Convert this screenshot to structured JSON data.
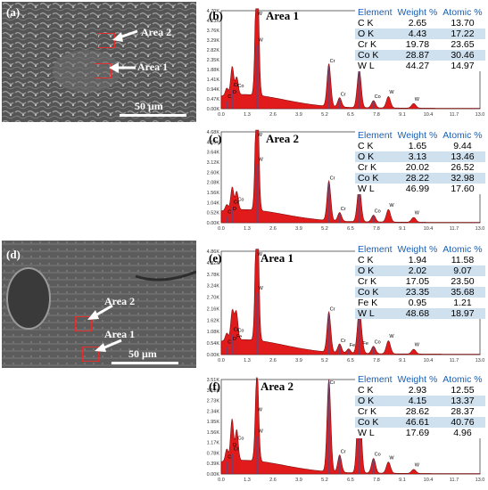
{
  "figure": {
    "panels": [
      {
        "id": "a",
        "letter": "(a)",
        "area_labels": [
          "Area 2",
          "Area 1"
        ],
        "scale_bar": "50 μm"
      },
      {
        "id": "b",
        "letter": "(b)",
        "title": "Area 1",
        "y_ticks": [
          "0.00K",
          "0.47K",
          "0.94K",
          "1.41K",
          "1.88K",
          "2.35K",
          "2.82K",
          "3.29K",
          "3.76K",
          "4.23K",
          "4.70K"
        ],
        "x_ticks": [
          "0.0",
          "1.3",
          "2.6",
          "3.9",
          "5.2",
          "6.5",
          "7.8",
          "9.1",
          "10.4",
          "11.7",
          "13.0"
        ],
        "peak_labels": [
          {
            "text": "C",
            "x": 0.28
          },
          {
            "text": "O",
            "x": 0.52
          },
          {
            "text": "Cr",
            "x": 0.57
          },
          {
            "text": "Co",
            "x": 0.78
          },
          {
            "text": "W",
            "x": 1.78
          },
          {
            "text": "W",
            "x": 1.77
          },
          {
            "text": "Cr",
            "x": 5.41
          },
          {
            "text": "Cr",
            "x": 5.95
          },
          {
            "text": "Co",
            "x": 6.93
          },
          {
            "text": "Co",
            "x": 7.65
          },
          {
            "text": "W",
            "x": 8.4
          },
          {
            "text": "W",
            "x": 9.67
          }
        ],
        "table": {
          "headers": [
            "Element",
            "Weight %",
            "Atomic %"
          ],
          "rows": [
            {
              "element": "C  K",
              "weight": "2.65",
              "atomic": "13.70"
            },
            {
              "element": "O  K",
              "weight": "4.43",
              "atomic": "17.22"
            },
            {
              "element": "Cr K",
              "weight": "19.78",
              "atomic": "23.65"
            },
            {
              "element": "Co K",
              "weight": "28.87",
              "atomic": "30.46"
            },
            {
              "element": "W  L",
              "weight": "44.27",
              "atomic": "14.97"
            }
          ]
        }
      },
      {
        "id": "c",
        "letter": "(c)",
        "title": "Area 2",
        "y_ticks": [
          "0.00K",
          "0.52K",
          "1.04K",
          "1.56K",
          "2.08K",
          "2.60K",
          "3.12K",
          "3.64K",
          "4.16K",
          "4.68K"
        ],
        "x_ticks": [
          "0.0",
          "1.3",
          "2.6",
          "3.9",
          "5.2",
          "6.5",
          "7.8",
          "9.1",
          "10.4",
          "11.7",
          "13.0"
        ],
        "peak_labels": [
          {
            "text": "C",
            "x": 0.28
          },
          {
            "text": "O",
            "x": 0.52
          },
          {
            "text": "Cr",
            "x": 0.57
          },
          {
            "text": "Co",
            "x": 0.78
          },
          {
            "text": "W",
            "x": 1.78
          },
          {
            "text": "W",
            "x": 1.77
          },
          {
            "text": "Cr",
            "x": 5.41
          },
          {
            "text": "Cr",
            "x": 5.95
          },
          {
            "text": "Co",
            "x": 6.93
          },
          {
            "text": "Co",
            "x": 7.65
          },
          {
            "text": "W",
            "x": 8.4
          },
          {
            "text": "W",
            "x": 9.67
          }
        ],
        "table": {
          "headers": [
            "Element",
            "Weight %",
            "Atomic %"
          ],
          "rows": [
            {
              "element": "C  K",
              "weight": "1.65",
              "atomic": "9.44"
            },
            {
              "element": "O  K",
              "weight": "3.13",
              "atomic": "13.46"
            },
            {
              "element": "Cr K",
              "weight": "20.02",
              "atomic": "26.52"
            },
            {
              "element": "Co K",
              "weight": "28.22",
              "atomic": "32.98"
            },
            {
              "element": "W  L",
              "weight": "46.99",
              "atomic": "17.60"
            }
          ]
        }
      },
      {
        "id": "d",
        "letter": "(d)",
        "area_labels": [
          "Area 2",
          "Area 1"
        ],
        "scale_bar": "50 μm"
      },
      {
        "id": "e",
        "letter": "(e)",
        "title": "Area 1",
        "y_ticks": [
          "0.00K",
          "0.54K",
          "1.08K",
          "1.62K",
          "2.16K",
          "2.70K",
          "3.24K",
          "3.78K",
          "4.32K",
          "4.86K"
        ],
        "x_ticks": [
          "0.0",
          "1.3",
          "2.6",
          "3.9",
          "5.2",
          "6.5",
          "7.8",
          "9.1",
          "10.4",
          "11.7",
          "13.0"
        ],
        "peak_labels": [
          {
            "text": "C",
            "x": 0.28
          },
          {
            "text": "O",
            "x": 0.52
          },
          {
            "text": "Cr",
            "x": 0.57
          },
          {
            "text": "Fe",
            "x": 0.71
          },
          {
            "text": "Co",
            "x": 0.78
          },
          {
            "text": "W",
            "x": 1.78
          },
          {
            "text": "W",
            "x": 1.77
          },
          {
            "text": "Cr",
            "x": 5.41
          },
          {
            "text": "Cr",
            "x": 5.95
          },
          {
            "text": "Fe",
            "x": 6.4
          },
          {
            "text": "Co",
            "x": 6.93
          },
          {
            "text": "Fe",
            "x": 7.06
          },
          {
            "text": "Co",
            "x": 7.65
          },
          {
            "text": "W",
            "x": 8.4
          },
          {
            "text": "W",
            "x": 9.67
          }
        ],
        "table": {
          "headers": [
            "Element",
            "Weight %",
            "Atomic %"
          ],
          "rows": [
            {
              "element": "C  K",
              "weight": "1.94",
              "atomic": "11.58"
            },
            {
              "element": "O  K",
              "weight": "2.02",
              "atomic": "9.07"
            },
            {
              "element": "Cr K",
              "weight": "17.05",
              "atomic": "23.50"
            },
            {
              "element": "Co K",
              "weight": "23.35",
              "atomic": "35.68"
            },
            {
              "element": "Fe K",
              "weight": "0.95",
              "atomic": "1.21"
            },
            {
              "element": "W  L",
              "weight": "48.68",
              "atomic": "18.97"
            }
          ]
        }
      },
      {
        "id": "f",
        "letter": "(f)",
        "title": "Area 2",
        "y_ticks": [
          "0.00K",
          "0.39K",
          "0.78K",
          "1.17K",
          "1.56K",
          "1.95K",
          "2.34K",
          "2.73K",
          "3.12K",
          "3.51K"
        ],
        "x_ticks": [
          "0.0",
          "1.3",
          "2.6",
          "3.9",
          "5.2",
          "6.5",
          "7.8",
          "9.1",
          "10.4",
          "11.7",
          "13.0"
        ],
        "peak_labels": [
          {
            "text": "C",
            "x": 0.28
          },
          {
            "text": "O",
            "x": 0.52
          },
          {
            "text": "Cr",
            "x": 0.57
          },
          {
            "text": "Co",
            "x": 0.78
          },
          {
            "text": "W",
            "x": 1.78
          },
          {
            "text": "W",
            "x": 1.77
          },
          {
            "text": "Cr",
            "x": 5.41
          },
          {
            "text": "Cr",
            "x": 5.95
          },
          {
            "text": "Co",
            "x": 6.93
          },
          {
            "text": "Co",
            "x": 7.65
          },
          {
            "text": "W",
            "x": 8.4
          },
          {
            "text": "W",
            "x": 9.67
          }
        ],
        "table": {
          "headers": [
            "Element",
            "Weight %",
            "Atomic %"
          ],
          "rows": [
            {
              "element": "C  K",
              "weight": "2.93",
              "atomic": "12.55"
            },
            {
              "element": "O  K",
              "weight": "4.15",
              "atomic": "13.37"
            },
            {
              "element": "Cr K",
              "weight": "28.62",
              "atomic": "28.37"
            },
            {
              "element": "Co K",
              "weight": "46.61",
              "atomic": "40.76"
            },
            {
              "element": "W  L",
              "weight": "17.69",
              "atomic": "4.96"
            }
          ]
        }
      }
    ]
  },
  "chart_data": [
    {
      "type": "area",
      "title": "Area 1",
      "xlim": [
        0,
        13
      ],
      "ylim": [
        0,
        4.7
      ],
      "peaks": [
        {
          "x": 0.28,
          "y": 0.35
        },
        {
          "x": 0.52,
          "y": 0.55
        },
        {
          "x": 0.57,
          "y": 0.9
        },
        {
          "x": 0.78,
          "y": 0.85
        },
        {
          "x": 1.78,
          "y": 4.72
        },
        {
          "x": 1.82,
          "y": 3.05
        },
        {
          "x": 5.41,
          "y": 2.05
        },
        {
          "x": 5.95,
          "y": 0.45
        },
        {
          "x": 6.93,
          "y": 1.85
        },
        {
          "x": 7.65,
          "y": 0.35
        },
        {
          "x": 8.4,
          "y": 0.55
        },
        {
          "x": 9.67,
          "y": 0.22
        }
      ]
    },
    {
      "type": "area",
      "title": "Area 2",
      "xlim": [
        0,
        13
      ],
      "ylim": [
        0,
        4.68
      ],
      "peaks": [
        {
          "x": 0.28,
          "y": 0.3
        },
        {
          "x": 0.52,
          "y": 0.45
        },
        {
          "x": 0.57,
          "y": 0.8
        },
        {
          "x": 0.78,
          "y": 0.95
        },
        {
          "x": 1.78,
          "y": 4.6
        },
        {
          "x": 1.82,
          "y": 3.0
        },
        {
          "x": 5.41,
          "y": 2.05
        },
        {
          "x": 5.95,
          "y": 0.45
        },
        {
          "x": 6.93,
          "y": 1.85
        },
        {
          "x": 7.65,
          "y": 0.35
        },
        {
          "x": 8.4,
          "y": 0.65
        },
        {
          "x": 9.67,
          "y": 0.25
        }
      ]
    },
    {
      "type": "area",
      "title": "Area 1",
      "xlim": [
        0,
        13
      ],
      "ylim": [
        0,
        4.86
      ],
      "peaks": [
        {
          "x": 0.28,
          "y": 0.35
        },
        {
          "x": 0.52,
          "y": 0.5
        },
        {
          "x": 0.57,
          "y": 0.95
        },
        {
          "x": 0.71,
          "y": 0.6
        },
        {
          "x": 0.78,
          "y": 0.9
        },
        {
          "x": 1.78,
          "y": 4.8
        },
        {
          "x": 1.82,
          "y": 2.9
        },
        {
          "x": 5.41,
          "y": 1.9
        },
        {
          "x": 5.95,
          "y": 0.42
        },
        {
          "x": 6.4,
          "y": 0.2
        },
        {
          "x": 6.93,
          "y": 1.95
        },
        {
          "x": 7.06,
          "y": 0.3
        },
        {
          "x": 7.65,
          "y": 0.35
        },
        {
          "x": 8.4,
          "y": 0.62
        },
        {
          "x": 9.67,
          "y": 0.22
        }
      ]
    },
    {
      "type": "area",
      "title": "Area 2",
      "xlim": [
        0,
        13
      ],
      "ylim": [
        0,
        3.51
      ],
      "peaks": [
        {
          "x": 0.28,
          "y": 0.45
        },
        {
          "x": 0.52,
          "y": 0.9
        },
        {
          "x": 0.57,
          "y": 0.75
        },
        {
          "x": 0.78,
          "y": 1.15
        },
        {
          "x": 1.78,
          "y": 2.2
        },
        {
          "x": 1.82,
          "y": 1.4
        },
        {
          "x": 5.41,
          "y": 3.45
        },
        {
          "x": 5.95,
          "y": 0.65
        },
        {
          "x": 6.93,
          "y": 3.35
        },
        {
          "x": 7.65,
          "y": 0.55
        },
        {
          "x": 8.4,
          "y": 0.42
        },
        {
          "x": 9.67,
          "y": 0.15
        }
      ]
    }
  ]
}
